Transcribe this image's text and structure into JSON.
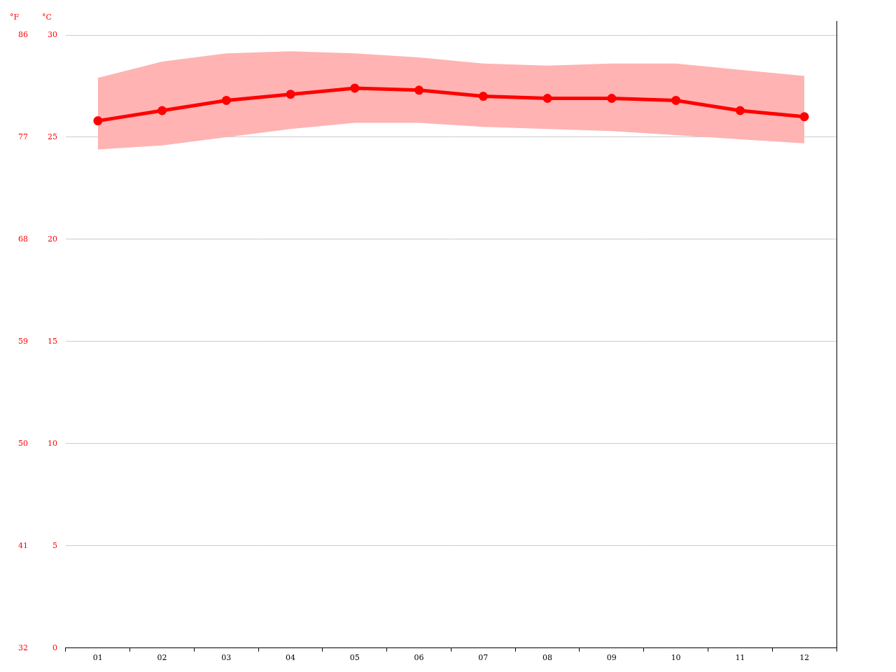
{
  "chart_data": {
    "type": "line",
    "y_label": "°C",
    "y2_label": "°F",
    "categories": [
      "01",
      "02",
      "03",
      "04",
      "05",
      "06",
      "07",
      "08",
      "09",
      "10",
      "11",
      "12"
    ],
    "series": [
      {
        "color": "#ff0000",
        "marker": "circle",
        "line_style": "solid",
        "values": [
          25.8,
          26.3,
          26.8,
          27.1,
          27.4,
          27.3,
          27.0,
          26.9,
          26.9,
          26.8,
          26.3,
          26.0
        ],
        "low": [
          24.4,
          24.6,
          25.0,
          25.4,
          25.7,
          25.7,
          25.5,
          25.4,
          25.3,
          25.1,
          24.9,
          24.7
        ],
        "high": [
          27.9,
          28.7,
          29.1,
          29.2,
          29.1,
          28.9,
          28.6,
          28.5,
          28.6,
          28.6,
          28.3,
          28.0
        ]
      }
    ],
    "ylim": [
      0,
      30
    ],
    "yticks": [
      0,
      5,
      10,
      15,
      20,
      25,
      30
    ],
    "y2lim": [
      32,
      86
    ],
    "y2ticks": [
      32,
      41,
      50,
      59,
      68,
      77,
      86
    ],
    "grid": true
  }
}
